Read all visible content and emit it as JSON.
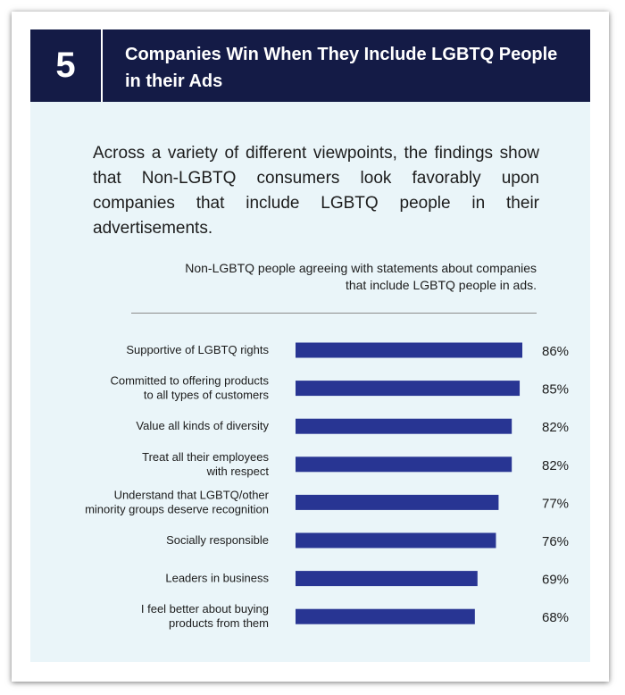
{
  "header": {
    "number": "5",
    "title": "Companies Win When They Include LGBTQ People in their Ads"
  },
  "intro": "Across a variety of different viewpoints, the findings show that Non-LGBTQ consumers look favorably upon companies that include LGBTQ people in their advertisements.",
  "chart_data": {
    "type": "bar",
    "orientation": "horizontal",
    "title": "Non-LGBTQ people agreeing with statements about companies that include LGBTQ people in ads.",
    "categories": [
      [
        "Supportive of LGBTQ rights"
      ],
      [
        "Committed to offering products",
        "to all types of customers"
      ],
      [
        "Value all kinds of diversity"
      ],
      [
        "Treat all their employees",
        "with respect"
      ],
      [
        "Understand that LGBTQ/other",
        "minority groups deserve recognition"
      ],
      [
        "Socially responsible"
      ],
      [
        "Leaders in business"
      ],
      [
        "I feel better about buying",
        "products from them"
      ]
    ],
    "values": [
      86,
      85,
      82,
      82,
      77,
      76,
      69,
      68
    ],
    "value_labels": [
      "86%",
      "85%",
      "82%",
      "82%",
      "77%",
      "76%",
      "69%",
      "68%"
    ],
    "unit": "%",
    "xlim": [
      0,
      86
    ],
    "bar_color": "#283593"
  }
}
